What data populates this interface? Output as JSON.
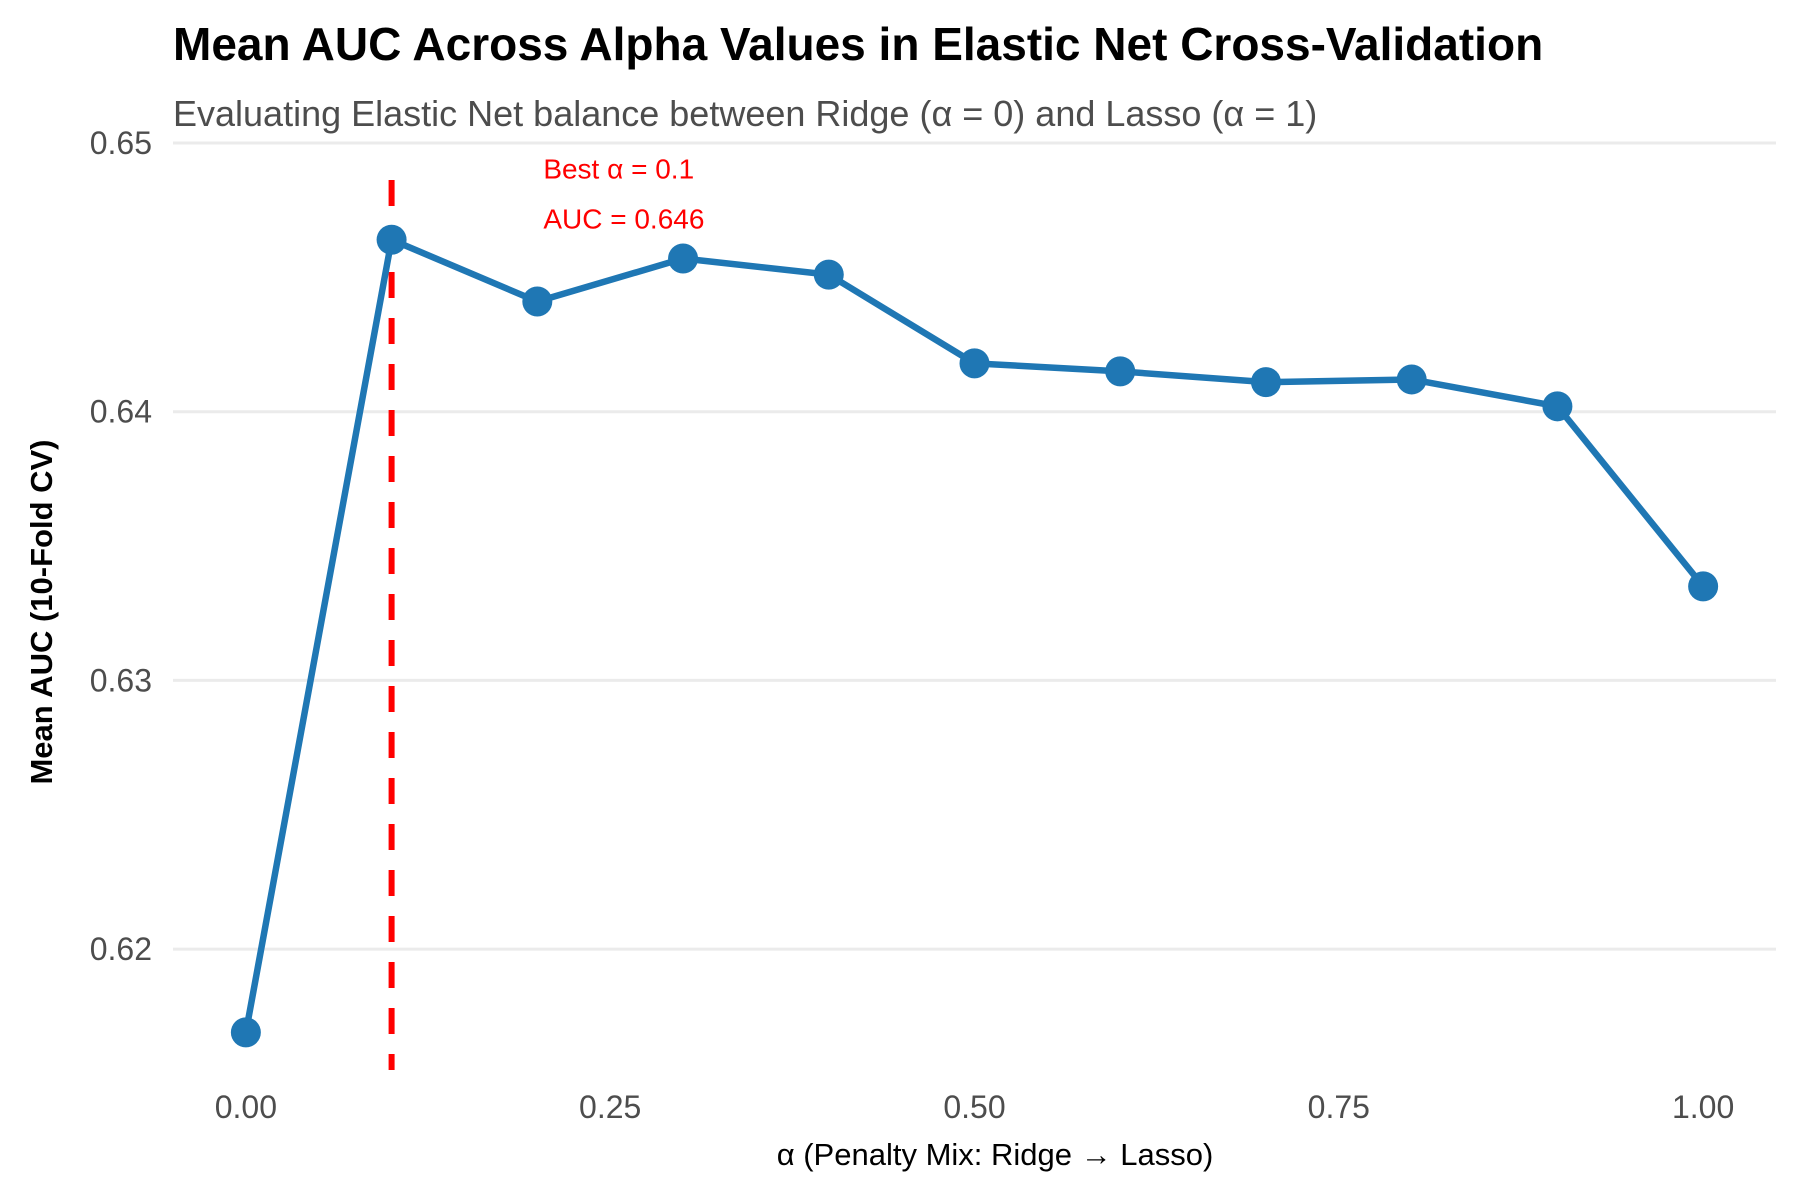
{
  "colors": {
    "series": "#1f77b4",
    "reference": "#ff0000",
    "annotation": "#ff0000",
    "gridline": "#ebebeb"
  },
  "chart_data": {
    "type": "line",
    "title": "Mean AUC Across Alpha Values in Elastic Net Cross-Validation",
    "subtitle": "Evaluating Elastic Net balance between Ridge (α = 0) and Lasso (α = 1)",
    "xlabel": "α (Penalty Mix: Ridge → Lasso)",
    "ylabel": "Mean AUC (10-Fold CV)",
    "x": [
      0.0,
      0.1,
      0.2,
      0.3,
      0.4,
      0.5,
      0.6,
      0.7,
      0.8,
      0.9,
      1.0
    ],
    "series": [
      {
        "values": [
          0.6169,
          0.6464,
          0.6441,
          0.6457,
          0.6451,
          0.6418,
          0.6415,
          0.6411,
          0.6412,
          0.6402,
          0.6335
        ]
      }
    ],
    "xlim": [
      -0.05,
      1.05
    ],
    "ylim": [
      0.6155,
      0.65
    ],
    "x_ticks": [
      0.0,
      0.25,
      0.5,
      0.75,
      1.0
    ],
    "x_tick_labels": [
      "0.00",
      "0.25",
      "0.50",
      "0.75",
      "1.00"
    ],
    "y_ticks": [
      0.62,
      0.63,
      0.64,
      0.65
    ],
    "y_tick_labels": [
      "0.62",
      "0.63",
      "0.64",
      "0.65"
    ],
    "grid": "horizontal-major",
    "reference_line": {
      "orientation": "vertical",
      "x": 0.1,
      "style": "dashed"
    },
    "annotation": {
      "x": 0.2,
      "y": 0.648,
      "lines": [
        "Best α = 0.1",
        "AUC = 0.646"
      ]
    }
  }
}
